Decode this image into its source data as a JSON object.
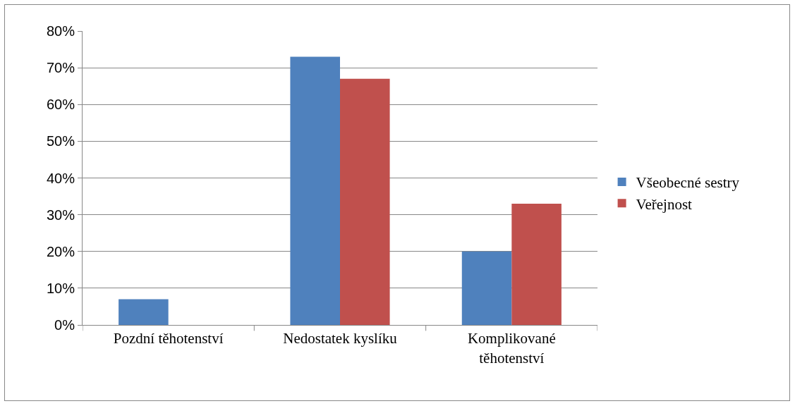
{
  "chart_data": {
    "type": "bar",
    "categories": [
      "Pozdní těhotenství",
      "Nedostatek kyslíku",
      "Komplikované těhotenství"
    ],
    "series": [
      {
        "name": "Všeobecné sestry",
        "color": "#4f81bd",
        "values": [
          7,
          73,
          20
        ]
      },
      {
        "name": "Veřejnost",
        "color": "#c0504d",
        "values": [
          0,
          67,
          33
        ]
      }
    ],
    "ylim": [
      0,
      80
    ],
    "yticks": [
      {
        "value": 0,
        "label": "0%"
      },
      {
        "value": 10,
        "label": "10%"
      },
      {
        "value": 20,
        "label": "20%"
      },
      {
        "value": 30,
        "label": "30%"
      },
      {
        "value": 40,
        "label": "40%"
      },
      {
        "value": 50,
        "label": "50%"
      },
      {
        "value": 60,
        "label": "60%"
      },
      {
        "value": 70,
        "label": "70%"
      },
      {
        "value": 80,
        "label": "80%"
      }
    ],
    "grid": "y",
    "legend": "right"
  }
}
